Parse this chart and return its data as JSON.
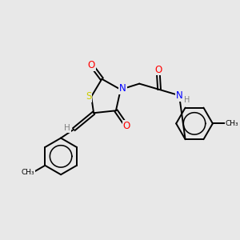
{
  "background_color": "#e8e8e8",
  "atom_colors": {
    "S": "#cccc00",
    "N": "#0000ff",
    "O": "#ff0000",
    "H": "#808080",
    "C": "#000000"
  },
  "bond_color": "#000000",
  "figsize": [
    3.0,
    3.0
  ],
  "dpi": 100,
  "line_width": 1.4,
  "font_size": 7.5
}
